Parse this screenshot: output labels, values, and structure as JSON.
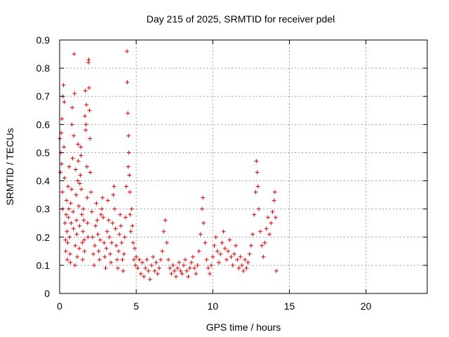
{
  "chart_data": {
    "type": "scatter",
    "title": "Day 215 of 2025, SRMTID for receiver pdel",
    "xlabel": "GPS time / hours",
    "ylabel": "SRMTID / TECUs",
    "xlim": [
      0,
      24
    ],
    "ylim": [
      0,
      0.9
    ],
    "xticks": [
      0,
      5,
      10,
      15,
      20
    ],
    "xtick_labels": [
      "0",
      "5",
      "10",
      "15",
      "20"
    ],
    "yticks": [
      0,
      0.1,
      0.2,
      0.3,
      0.4,
      0.5,
      0.6,
      0.7,
      0.8,
      0.9
    ],
    "ytick_labels": [
      "0",
      "0.1",
      "0.2",
      "0.3",
      "0.4",
      "0.5",
      "0.6",
      "0.7",
      "0.8",
      "0.9"
    ],
    "grid": true,
    "marker": "plus",
    "color": "#e00000",
    "series": [
      {
        "name": "pdel",
        "points": [
          [
            0.02,
            0.55
          ],
          [
            0.05,
            0.43
          ],
          [
            0.08,
            0.5
          ],
          [
            0.1,
            0.57
          ],
          [
            0.12,
            0.46
          ],
          [
            0.15,
            0.62
          ],
          [
            0.18,
            0.36
          ],
          [
            0.2,
            0.3
          ],
          [
            0.22,
            0.7
          ],
          [
            0.25,
            0.74
          ],
          [
            0.28,
            0.52
          ],
          [
            0.3,
            0.68
          ],
          [
            0.32,
            0.41
          ],
          [
            0.35,
            0.25
          ],
          [
            0.38,
            0.19
          ],
          [
            0.4,
            0.15
          ],
          [
            0.42,
            0.28
          ],
          [
            0.45,
            0.33
          ],
          [
            0.48,
            0.22
          ],
          [
            0.5,
            0.12
          ],
          [
            0.52,
            0.18
          ],
          [
            0.55,
            0.38
          ],
          [
            0.58,
            0.27
          ],
          [
            0.6,
            0.3
          ],
          [
            0.62,
            0.45
          ],
          [
            0.65,
            0.2
          ],
          [
            0.68,
            0.14
          ],
          [
            0.7,
            0.11
          ],
          [
            0.72,
            0.32
          ],
          [
            0.75,
            0.25
          ],
          [
            0.78,
            0.37
          ],
          [
            0.8,
            0.6
          ],
          [
            0.82,
            0.66
          ],
          [
            0.85,
            0.48
          ],
          [
            0.88,
            0.29
          ],
          [
            0.9,
            0.23
          ],
          [
            0.92,
            0.56
          ],
          [
            0.95,
            0.85
          ],
          [
            0.98,
            0.71
          ],
          [
            1.0,
            0.1
          ],
          [
            1.02,
            0.17
          ],
          [
            1.05,
            0.44
          ],
          [
            1.08,
            0.35
          ],
          [
            1.1,
            0.26
          ],
          [
            1.12,
            0.21
          ],
          [
            1.15,
            0.13
          ],
          [
            1.18,
            0.4
          ],
          [
            1.2,
            0.53
          ],
          [
            1.22,
            0.47
          ],
          [
            1.25,
            0.31
          ],
          [
            1.28,
            0.16
          ],
          [
            1.3,
            0.24
          ],
          [
            1.32,
            0.39
          ],
          [
            1.35,
            0.42
          ],
          [
            1.38,
            0.52
          ],
          [
            1.4,
            0.49
          ],
          [
            1.42,
            0.37
          ],
          [
            1.45,
            0.28
          ],
          [
            1.48,
            0.18
          ],
          [
            1.5,
            0.12
          ],
          [
            1.52,
            0.22
          ],
          [
            1.55,
            0.3
          ],
          [
            1.58,
            0.26
          ],
          [
            1.6,
            0.19
          ],
          [
            1.62,
            0.15
          ],
          [
            1.65,
            0.63
          ],
          [
            1.68,
            0.72
          ],
          [
            1.7,
            0.58
          ],
          [
            1.72,
            0.6
          ],
          [
            1.75,
            0.67
          ],
          [
            1.78,
            0.45
          ],
          [
            1.8,
            0.34
          ],
          [
            1.82,
            0.25
          ],
          [
            1.85,
            0.2
          ],
          [
            1.88,
            0.82
          ],
          [
            1.9,
            0.83
          ],
          [
            1.92,
            0.73
          ],
          [
            1.95,
            0.65
          ],
          [
            1.98,
            0.55
          ],
          [
            2.0,
            0.43
          ],
          [
            2.05,
            0.36
          ],
          [
            2.1,
            0.29
          ],
          [
            2.15,
            0.2
          ],
          [
            2.2,
            0.14
          ],
          [
            2.25,
            0.1
          ],
          [
            2.3,
            0.17
          ],
          [
            2.35,
            0.24
          ],
          [
            2.4,
            0.32
          ],
          [
            2.45,
            0.26
          ],
          [
            2.5,
            0.21
          ],
          [
            2.55,
            0.15
          ],
          [
            2.6,
            0.12
          ],
          [
            2.65,
            0.19
          ],
          [
            2.7,
            0.28
          ],
          [
            2.75,
            0.3
          ],
          [
            2.8,
            0.34
          ],
          [
            2.85,
            0.27
          ],
          [
            2.9,
            0.18
          ],
          [
            2.95,
            0.13
          ],
          [
            3.0,
            0.09
          ],
          [
            3.05,
            0.16
          ],
          [
            3.1,
            0.22
          ],
          [
            3.15,
            0.33
          ],
          [
            3.2,
            0.26
          ],
          [
            3.25,
            0.2
          ],
          [
            3.3,
            0.14
          ],
          [
            3.35,
            0.11
          ],
          [
            3.4,
            0.18
          ],
          [
            3.45,
            0.25
          ],
          [
            3.5,
            0.35
          ],
          [
            3.55,
            0.38
          ],
          [
            3.6,
            0.3
          ],
          [
            3.65,
            0.23
          ],
          [
            3.7,
            0.17
          ],
          [
            3.75,
            0.12
          ],
          [
            3.8,
            0.09
          ],
          [
            3.85,
            0.15
          ],
          [
            3.9,
            0.21
          ],
          [
            3.95,
            0.28
          ],
          [
            4.0,
            0.24
          ],
          [
            4.05,
            0.18
          ],
          [
            4.1,
            0.12
          ],
          [
            4.15,
            0.08
          ],
          [
            4.2,
            0.14
          ],
          [
            4.25,
            0.2
          ],
          [
            4.3,
            0.27
          ],
          [
            4.35,
            0.38
          ],
          [
            4.4,
            0.86
          ],
          [
            4.42,
            0.75
          ],
          [
            4.45,
            0.64
          ],
          [
            4.48,
            0.45
          ],
          [
            4.5,
            0.56
          ],
          [
            4.52,
            0.5
          ],
          [
            4.55,
            0.42
          ],
          [
            4.58,
            0.36
          ],
          [
            4.6,
            0.28
          ],
          [
            4.65,
            0.22
          ],
          [
            4.7,
            0.3
          ],
          [
            4.75,
            0.24
          ],
          [
            4.8,
            0.18
          ],
          [
            4.85,
            0.12
          ],
          [
            4.9,
            0.16
          ],
          [
            4.95,
            0.1
          ],
          [
            5.0,
            0.13
          ],
          [
            5.1,
            0.09
          ],
          [
            5.2,
            0.12
          ],
          [
            5.3,
            0.07
          ],
          [
            5.4,
            0.11
          ],
          [
            5.5,
            0.06
          ],
          [
            5.6,
            0.09
          ],
          [
            5.7,
            0.12
          ],
          [
            5.8,
            0.08
          ],
          [
            5.9,
            0.05
          ],
          [
            6.0,
            0.1
          ],
          [
            6.1,
            0.13
          ],
          [
            6.2,
            0.08
          ],
          [
            6.3,
            0.11
          ],
          [
            6.4,
            0.07
          ],
          [
            6.5,
            0.09
          ],
          [
            6.6,
            0.12
          ],
          [
            6.7,
            0.15
          ],
          [
            6.8,
            0.22
          ],
          [
            6.9,
            0.26
          ],
          [
            7.0,
            0.18
          ],
          [
            7.1,
            0.12
          ],
          [
            7.2,
            0.09
          ],
          [
            7.3,
            0.07
          ],
          [
            7.4,
            0.1
          ],
          [
            7.5,
            0.08
          ],
          [
            7.6,
            0.06
          ],
          [
            7.7,
            0.09
          ],
          [
            7.8,
            0.11
          ],
          [
            7.9,
            0.08
          ],
          [
            8.0,
            0.07
          ],
          [
            8.1,
            0.1
          ],
          [
            8.2,
            0.12
          ],
          [
            8.3,
            0.08
          ],
          [
            8.4,
            0.06
          ],
          [
            8.5,
            0.09
          ],
          [
            8.6,
            0.11
          ],
          [
            8.7,
            0.13
          ],
          [
            8.8,
            0.09
          ],
          [
            8.9,
            0.07
          ],
          [
            9.0,
            0.1
          ],
          [
            9.1,
            0.15
          ],
          [
            9.2,
            0.21
          ],
          [
            9.3,
            0.3
          ],
          [
            9.35,
            0.34
          ],
          [
            9.4,
            0.25
          ],
          [
            9.5,
            0.18
          ],
          [
            9.6,
            0.12
          ],
          [
            9.7,
            0.09
          ],
          [
            9.8,
            0.07
          ],
          [
            9.9,
            0.1
          ],
          [
            10.0,
            0.13
          ],
          [
            10.1,
            0.17
          ],
          [
            10.2,
            0.2
          ],
          [
            10.3,
            0.15
          ],
          [
            10.4,
            0.11
          ],
          [
            10.5,
            0.14
          ],
          [
            10.6,
            0.18
          ],
          [
            10.7,
            0.22
          ],
          [
            10.8,
            0.16
          ],
          [
            10.9,
            0.12
          ],
          [
            11.0,
            0.15
          ],
          [
            11.1,
            0.19
          ],
          [
            11.2,
            0.13
          ],
          [
            11.3,
            0.1
          ],
          [
            11.4,
            0.14
          ],
          [
            11.5,
            0.17
          ],
          [
            11.6,
            0.12
          ],
          [
            11.7,
            0.09
          ],
          [
            11.8,
            0.13
          ],
          [
            11.9,
            0.1
          ],
          [
            12.0,
            0.08
          ],
          [
            12.1,
            0.12
          ],
          [
            12.2,
            0.09
          ],
          [
            12.3,
            0.11
          ],
          [
            12.4,
            0.14
          ],
          [
            12.5,
            0.17
          ],
          [
            12.6,
            0.21
          ],
          [
            12.7,
            0.28
          ],
          [
            12.8,
            0.36
          ],
          [
            12.85,
            0.47
          ],
          [
            12.9,
            0.43
          ],
          [
            12.95,
            0.38
          ],
          [
            13.0,
            0.3
          ],
          [
            13.1,
            0.22
          ],
          [
            13.2,
            0.17
          ],
          [
            13.3,
            0.13
          ],
          [
            13.4,
            0.18
          ],
          [
            13.5,
            0.23
          ],
          [
            13.6,
            0.27
          ],
          [
            13.7,
            0.21
          ],
          [
            13.8,
            0.25
          ],
          [
            13.9,
            0.29
          ],
          [
            14.0,
            0.33
          ],
          [
            14.05,
            0.36
          ],
          [
            14.1,
            0.27
          ],
          [
            14.15,
            0.08
          ]
        ]
      }
    ]
  }
}
